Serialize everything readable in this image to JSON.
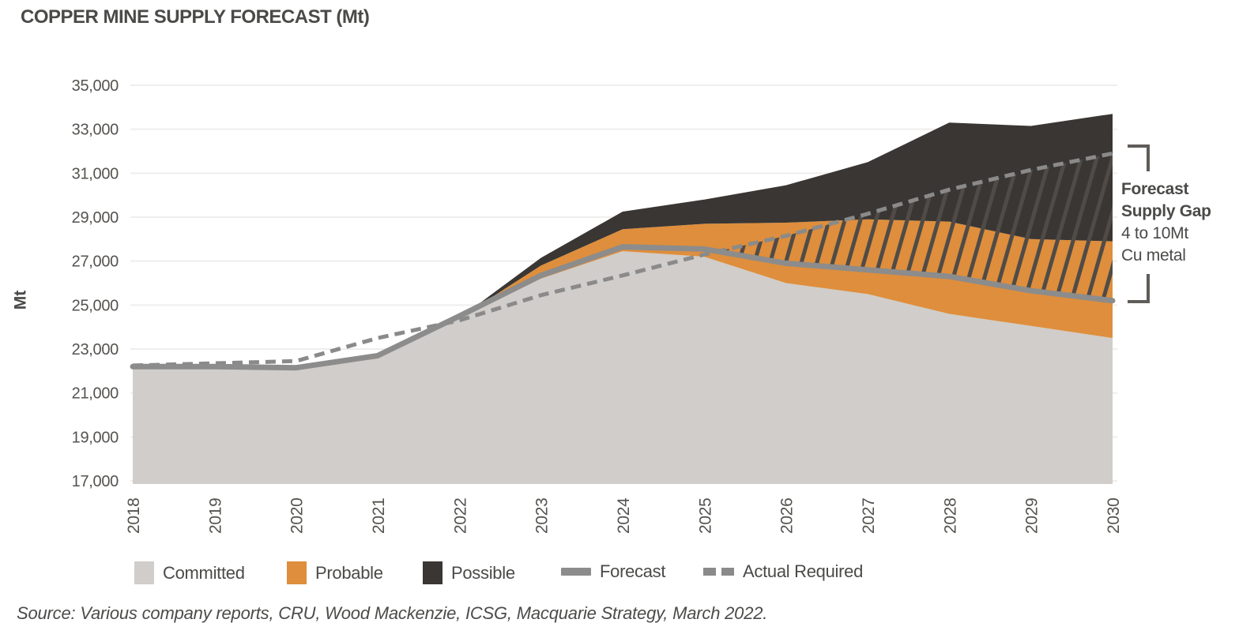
{
  "title": "COPPER MINE SUPPLY FORECAST (Mt)",
  "y_axis_title": "Mt",
  "source": "Source: Various company reports, CRU, Wood Mackenzie, ICSG, Macquarie Strategy, March 2022.",
  "annotation": {
    "line1": "Forecast",
    "line2": "Supply Gap",
    "line3": "4 to 10Mt",
    "line4": "Cu metal"
  },
  "colors": {
    "committed": "#d0cdca",
    "probable": "#de8e3c",
    "possible": "#3a3633",
    "forecast_line": "#8c8c8c",
    "actual_required_line": "#8a8a8a",
    "hatch": "#504b47",
    "gridline": "#efeeec",
    "tick_text": "#55534f",
    "title_text": "#4a4a48"
  },
  "legend": [
    {
      "label": "Committed",
      "swatch": "square",
      "color": "#d0cdca"
    },
    {
      "label": "Probable",
      "swatch": "square",
      "color": "#de8e3c"
    },
    {
      "label": "Possible",
      "swatch": "square",
      "color": "#3a3633"
    },
    {
      "label": "Forecast",
      "swatch": "thick-line",
      "color": "#8c8c8c"
    },
    {
      "label": "Actual Required",
      "swatch": "dashes",
      "color": "#8a8a8a"
    }
  ],
  "chart_data": {
    "type": "area",
    "title": "COPPER MINE SUPPLY FORECAST (Mt)",
    "xlabel": "",
    "ylabel": "Mt",
    "ylim": [
      17000,
      35000
    ],
    "y_ticks": [
      17000,
      19000,
      21000,
      23000,
      25000,
      27000,
      29000,
      31000,
      33000,
      35000
    ],
    "grid": "horizontal",
    "legend_position": "bottom",
    "categories": [
      2018,
      2019,
      2020,
      2021,
      2022,
      2023,
      2024,
      2025,
      2026,
      2027,
      2028,
      2029,
      2030
    ],
    "series": [
      {
        "name": "Committed",
        "kind": "area",
        "stack_top": true,
        "values": [
          22150,
          22150,
          22100,
          22600,
          24400,
          26200,
          27450,
          27200,
          26000,
          25500,
          24600,
          24050,
          23500
        ]
      },
      {
        "name": "Probable",
        "kind": "area",
        "stacked_on": "Committed",
        "cumulative_top": true,
        "values": [
          22150,
          22150,
          22100,
          22600,
          24400,
          26800,
          28450,
          28700,
          28750,
          28900,
          28800,
          28000,
          27900
        ]
      },
      {
        "name": "Possible",
        "kind": "area",
        "stacked_on": "Probable",
        "cumulative_top": true,
        "values": [
          22150,
          22150,
          22100,
          22600,
          24400,
          27150,
          29250,
          29800,
          30450,
          31500,
          33300,
          33150,
          33700
        ]
      },
      {
        "name": "Forecast",
        "kind": "line",
        "values": [
          22200,
          22200,
          22150,
          22700,
          24500,
          26350,
          27650,
          27550,
          26900,
          26600,
          26300,
          25650,
          25200
        ]
      },
      {
        "name": "Actual Required",
        "kind": "dashed-line",
        "values": [
          22250,
          22350,
          22450,
          23500,
          24300,
          25450,
          26350,
          27300,
          28150,
          29150,
          30250,
          31150,
          31900
        ]
      }
    ],
    "gap_hatch": {
      "between": [
        "Forecast",
        "Actual Required"
      ],
      "label": "Forecast Supply Gap 4 to 10Mt Cu metal",
      "gap_at_2030": 6700
    }
  }
}
